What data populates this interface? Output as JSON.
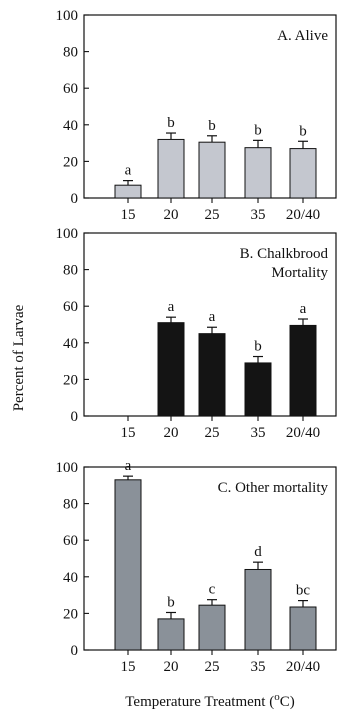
{
  "chart_data": [
    {
      "type": "bar",
      "title": "A. Alive",
      "categories": [
        "15",
        "20",
        "25",
        "35",
        "20/40"
      ],
      "values": [
        7,
        32,
        30.5,
        27.5,
        27
      ],
      "errors": [
        2.5,
        3.5,
        3.5,
        4,
        4
      ],
      "letters": [
        "a",
        "b",
        "b",
        "b",
        "b"
      ],
      "ylim": [
        0,
        100
      ],
      "yticks": [
        "0",
        "20",
        "40",
        "60",
        "80",
        "100"
      ],
      "bar_color": "#c4c7cf"
    },
    {
      "type": "bar",
      "title": [
        "B. Chalkbrood",
        "Mortality"
      ],
      "categories": [
        "15",
        "20",
        "25",
        "35",
        "20/40"
      ],
      "values": [
        0,
        51,
        45,
        29,
        49.5
      ],
      "errors": [
        0,
        3,
        3.5,
        3.5,
        3.5
      ],
      "letters": [
        "",
        "a",
        "a",
        "b",
        "a"
      ],
      "ylim": [
        0,
        100
      ],
      "yticks": [
        "0",
        "20",
        "40",
        "60",
        "80",
        "100"
      ],
      "bar_color": "#141414"
    },
    {
      "type": "bar",
      "title": "C. Other mortality",
      "categories": [
        "15",
        "20",
        "25",
        "35",
        "20/40"
      ],
      "values": [
        93,
        17,
        24.5,
        44,
        23.5
      ],
      "errors": [
        2,
        3.5,
        3,
        4,
        3.5
      ],
      "letters": [
        "a",
        "b",
        "c",
        "d",
        "bc"
      ],
      "ylim": [
        0,
        100
      ],
      "yticks": [
        "0",
        "20",
        "40",
        "60",
        "80",
        "100"
      ],
      "bar_color": "#8a9199"
    }
  ],
  "ylabel": "Percent of Larvae",
  "xlabel_prefix": "Temperature Treatment (",
  "xlabel_super": "o",
  "xlabel_suffix": "C)"
}
